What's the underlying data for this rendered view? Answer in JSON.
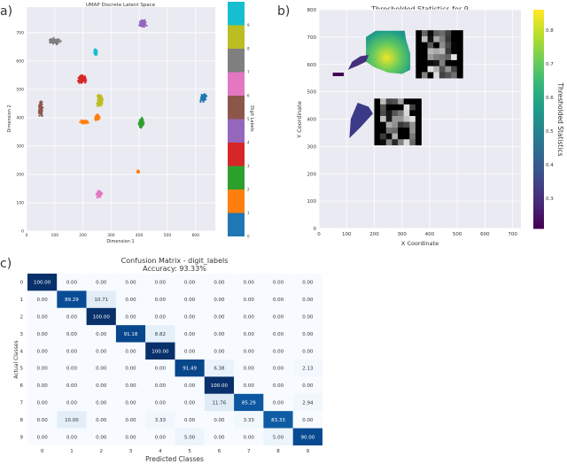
{
  "panel_labels": {
    "a": "a)",
    "b": "b)",
    "c": "c)"
  },
  "chart_data": [
    {
      "type": "scatter",
      "title": "UMAP Discrete Latent Space",
      "xlabel": "Dimension 1",
      "ylabel": "Dimension 2",
      "xlim": [
        0,
        670
      ],
      "ylim": [
        0,
        790
      ],
      "xticks": [
        "0",
        "100",
        "200",
        "300",
        "400",
        "500",
        "600"
      ],
      "yticks": [
        "0",
        "100",
        "200",
        "300",
        "400",
        "500",
        "600",
        "700"
      ],
      "grid": true,
      "colorbar": {
        "label": "Digit Labels",
        "ticks": [
          "0",
          "1",
          "2",
          "3",
          "4",
          "5",
          "6",
          "7",
          "8",
          "9"
        ],
        "colors": [
          "#1f77b4",
          "#ff7f0e",
          "#2ca02c",
          "#d62728",
          "#9467bd",
          "#8c564b",
          "#e377c2",
          "#7f7f7f",
          "#bcbd22",
          "#17becf"
        ]
      },
      "clusters": [
        {
          "label": 0,
          "x": 628,
          "y": 470,
          "sx": 10,
          "sy": 13
        },
        {
          "label": 1,
          "x": 252,
          "y": 400,
          "sx": 9,
          "sy": 12
        },
        {
          "label": 1,
          "x": 205,
          "y": 385,
          "sx": 14,
          "sy": 6
        },
        {
          "label": 1,
          "x": 396,
          "y": 210,
          "sx": 4,
          "sy": 5
        },
        {
          "label": 2,
          "x": 407,
          "y": 380,
          "sx": 9,
          "sy": 18
        },
        {
          "label": 3,
          "x": 197,
          "y": 535,
          "sx": 15,
          "sy": 14
        },
        {
          "label": 4,
          "x": 413,
          "y": 732,
          "sx": 12,
          "sy": 14
        },
        {
          "label": 5,
          "x": 50,
          "y": 430,
          "sx": 7,
          "sy": 25
        },
        {
          "label": 6,
          "x": 257,
          "y": 130,
          "sx": 11,
          "sy": 13
        },
        {
          "label": 7,
          "x": 100,
          "y": 670,
          "sx": 19,
          "sy": 10
        },
        {
          "label": 8,
          "x": 260,
          "y": 460,
          "sx": 10,
          "sy": 22
        },
        {
          "label": 9,
          "x": 245,
          "y": 630,
          "sx": 6,
          "sy": 12
        }
      ]
    },
    {
      "type": "heatmap",
      "title": "Thresholded Statistics for 9",
      "xlabel": "X Coordinate",
      "ylabel": "Y Coordinate",
      "xlim": [
        0,
        730
      ],
      "ylim": [
        0,
        800
      ],
      "xticks": [
        "0",
        "100",
        "200",
        "300",
        "400",
        "500",
        "600",
        "700"
      ],
      "yticks": [
        "0",
        "100",
        "200",
        "300",
        "400",
        "500",
        "600",
        "700",
        "800"
      ],
      "grid": true,
      "colormap": "viridis",
      "colorbar": {
        "label": "Thresholded Statistics",
        "range": [
          0.21,
          0.86
        ],
        "ticks": [
          "0.3",
          "0.4",
          "0.5",
          "0.6",
          "0.7",
          "0.8"
        ]
      },
      "peak": {
        "x": 245,
        "y": 625,
        "value": 0.86
      }
    },
    {
      "type": "table",
      "title": "Confusion Matrix - digit_labels",
      "subtitle": "Accuracy: 93.33%",
      "xlabel": "Predicted Classes",
      "ylabel": "Actual Classes",
      "categories": [
        "0",
        "1",
        "2",
        "3",
        "4",
        "5",
        "6",
        "7",
        "8",
        "9"
      ],
      "colormap": "Blues",
      "values": [
        [
          100.0,
          0.0,
          0.0,
          0.0,
          0.0,
          0.0,
          0.0,
          0.0,
          0.0,
          0.0
        ],
        [
          0.0,
          89.29,
          10.71,
          0.0,
          0.0,
          0.0,
          0.0,
          0.0,
          0.0,
          0.0
        ],
        [
          0.0,
          0.0,
          100.0,
          0.0,
          0.0,
          0.0,
          0.0,
          0.0,
          0.0,
          0.0
        ],
        [
          0.0,
          0.0,
          0.0,
          91.18,
          8.82,
          0.0,
          0.0,
          0.0,
          0.0,
          0.0
        ],
        [
          0.0,
          0.0,
          0.0,
          0.0,
          100.0,
          0.0,
          0.0,
          0.0,
          0.0,
          0.0
        ],
        [
          0.0,
          0.0,
          0.0,
          0.0,
          0.0,
          91.49,
          6.38,
          0.0,
          0.0,
          2.13
        ],
        [
          0.0,
          0.0,
          0.0,
          0.0,
          0.0,
          0.0,
          100.0,
          0.0,
          0.0,
          0.0
        ],
        [
          0.0,
          0.0,
          0.0,
          0.0,
          0.0,
          0.0,
          11.76,
          85.29,
          0.0,
          2.94
        ],
        [
          0.0,
          10.0,
          0.0,
          0.0,
          3.33,
          0.0,
          0.0,
          3.33,
          83.33,
          0.0
        ],
        [
          0.0,
          0.0,
          0.0,
          0.0,
          0.0,
          5.0,
          0.0,
          0.0,
          5.0,
          90.0
        ]
      ]
    }
  ]
}
